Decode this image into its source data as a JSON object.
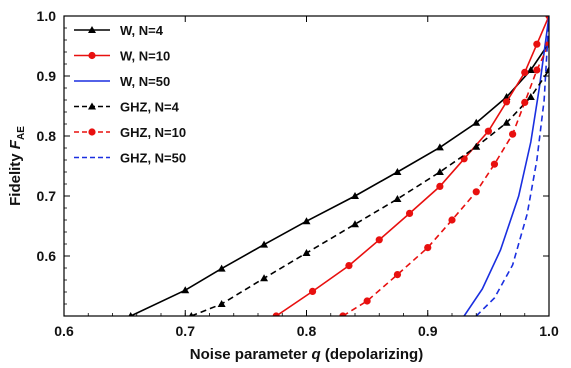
{
  "chart_data": {
    "type": "line",
    "xlabel": {
      "prefix": "Noise parameter ",
      "var": "q",
      "suffix": " (depolarizing)"
    },
    "ylabel": {
      "prefix": "Fidelity ",
      "var": "F",
      "sub": "AE"
    },
    "xlim": [
      0.6,
      1.0
    ],
    "ylim": [
      0.5,
      1.0
    ],
    "x_ticks": [
      0.6,
      0.7,
      0.8,
      0.9,
      1.0
    ],
    "x_tick_labels": [
      "0.6",
      "0.7",
      "0.8",
      "0.9",
      "1.0"
    ],
    "y_ticks": [
      0.6,
      0.7,
      0.8,
      0.9,
      1.0
    ],
    "y_tick_labels": [
      "0.6",
      "0.7",
      "0.8",
      "0.9",
      "1.0"
    ],
    "grid": false,
    "legend_position": "top-left",
    "series": [
      {
        "name": "W, N=4",
        "color": "#000000",
        "dash": "solid",
        "marker": "triangle",
        "x": [
          0.655,
          0.7,
          0.73,
          0.765,
          0.8,
          0.84,
          0.875,
          0.91,
          0.94,
          0.965,
          0.985,
          1.0
        ],
        "y": [
          0.5,
          0.543,
          0.579,
          0.619,
          0.658,
          0.7,
          0.74,
          0.781,
          0.822,
          0.865,
          0.91,
          0.955
        ]
      },
      {
        "name": "W, N=10",
        "color": "#e8100f",
        "dash": "solid",
        "marker": "circle",
        "x": [
          0.775,
          0.805,
          0.835,
          0.86,
          0.885,
          0.91,
          0.93,
          0.95,
          0.965,
          0.98,
          0.99,
          1.0
        ],
        "y": [
          0.5,
          0.541,
          0.584,
          0.627,
          0.671,
          0.716,
          0.762,
          0.808,
          0.857,
          0.906,
          0.953,
          1.0
        ]
      },
      {
        "name": "W, N=50",
        "color": "#1a2fe0",
        "dash": "solid",
        "marker": "none",
        "x": [
          0.93,
          0.945,
          0.96,
          0.975,
          0.985,
          0.992,
          1.0
        ],
        "y": [
          0.5,
          0.545,
          0.61,
          0.7,
          0.79,
          0.88,
          1.0
        ]
      },
      {
        "name": "GHZ, N=4",
        "color": "#000000",
        "dash": "dashed",
        "marker": "triangle",
        "x": [
          0.705,
          0.73,
          0.765,
          0.8,
          0.84,
          0.875,
          0.91,
          0.94,
          0.965,
          0.985,
          1.0
        ],
        "y": [
          0.5,
          0.52,
          0.563,
          0.605,
          0.653,
          0.695,
          0.74,
          0.782,
          0.822,
          0.865,
          0.91
        ]
      },
      {
        "name": "GHZ, N=10",
        "color": "#e8100f",
        "dash": "dashed",
        "marker": "circle",
        "x": [
          0.83,
          0.85,
          0.875,
          0.9,
          0.92,
          0.94,
          0.955,
          0.97,
          0.98,
          0.99,
          1.0
        ],
        "y": [
          0.5,
          0.525,
          0.569,
          0.614,
          0.66,
          0.707,
          0.753,
          0.803,
          0.856,
          0.91,
          0.953
        ]
      },
      {
        "name": "GHZ, N=50",
        "color": "#1a2fe0",
        "dash": "dashed",
        "marker": "none",
        "x": [
          0.94,
          0.955,
          0.97,
          0.982,
          0.99,
          0.996,
          1.0
        ],
        "y": [
          0.5,
          0.53,
          0.585,
          0.67,
          0.76,
          0.86,
          1.0
        ]
      }
    ]
  }
}
